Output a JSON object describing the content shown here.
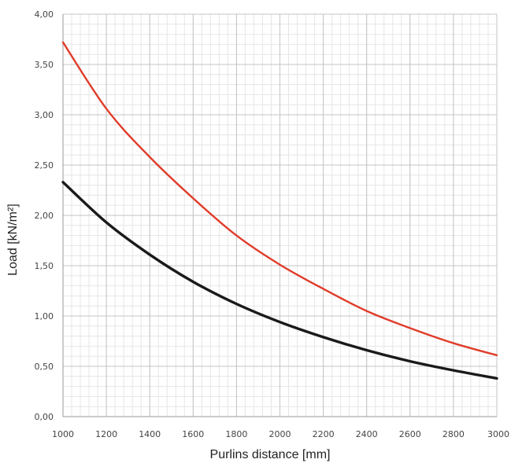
{
  "chart_data": {
    "type": "line",
    "xlabel": "Purlins distance [mm]",
    "ylabel": "Load [kN/m²]",
    "xlim": [
      1000,
      3000
    ],
    "ylim": [
      0,
      4
    ],
    "x_ticks": [
      "1000",
      "1200",
      "1400",
      "1600",
      "1800",
      "2000",
      "2200",
      "2400",
      "2600",
      "2800",
      "3000"
    ],
    "y_ticks": [
      "0,00",
      "0,50",
      "1,00",
      "1,50",
      "2,00",
      "2,50",
      "3,00",
      "3,50",
      "4,00"
    ],
    "grid": true,
    "x": [
      1000,
      1200,
      1400,
      1600,
      1800,
      2000,
      2200,
      2400,
      2600,
      2800,
      3000
    ],
    "series": [
      {
        "color": "#e03c2a",
        "values": [
          3.72,
          3.06,
          2.58,
          2.17,
          1.8,
          1.51,
          1.27,
          1.05,
          0.88,
          0.73,
          0.61
        ]
      },
      {
        "color": "#1a1a1a",
        "values": [
          2.33,
          1.93,
          1.61,
          1.34,
          1.12,
          0.94,
          0.79,
          0.66,
          0.55,
          0.46,
          0.38
        ]
      }
    ]
  }
}
